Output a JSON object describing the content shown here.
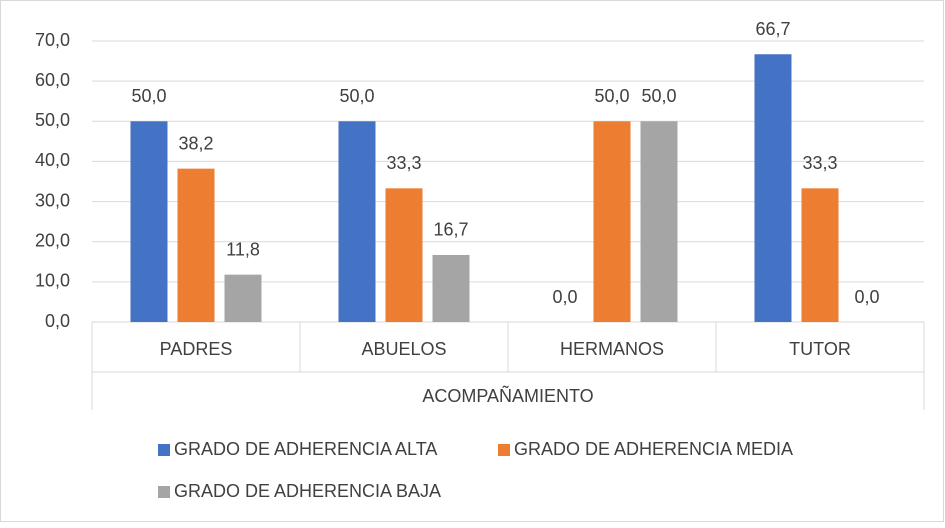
{
  "chart_data": {
    "type": "bar",
    "x_label": "ACOMPAÑAMIENTO",
    "categories": [
      "PADRES",
      "ABUELOS",
      "HERMANOS",
      "TUTOR"
    ],
    "series": [
      {
        "name": "GRADO DE ADHERENCIA ALTA",
        "color": "#4472c4",
        "values": [
          50.0,
          50.0,
          0.0,
          66.7
        ],
        "value_labels": [
          "50,0",
          "50,0",
          "0,0",
          "66,7"
        ]
      },
      {
        "name": "GRADO DE ADHERENCIA MEDIA",
        "color": "#ed7d31",
        "values": [
          38.2,
          33.3,
          50.0,
          33.3
        ],
        "value_labels": [
          "38,2",
          "33,3",
          "50,0",
          "33,3"
        ]
      },
      {
        "name": "GRADO DE ADHERENCIA BAJA",
        "color": "#a5a5a5",
        "values": [
          11.8,
          16.7,
          50.0,
          0.0
        ],
        "value_labels": [
          "11,8",
          "16,7",
          "50,0",
          "0,0"
        ]
      }
    ],
    "ylim": [
      0,
      70
    ],
    "yticks": [
      {
        "value": 0,
        "label": "0,0"
      },
      {
        "value": 10,
        "label": "10,0"
      },
      {
        "value": 20,
        "label": "20,0"
      },
      {
        "value": 30,
        "label": "30,0"
      },
      {
        "value": 40,
        "label": "40,0"
      },
      {
        "value": 50,
        "label": "50,0"
      },
      {
        "value": 60,
        "label": "60,0"
      },
      {
        "value": 70,
        "label": "70,0"
      }
    ],
    "grid": true,
    "legend": "bottom"
  }
}
